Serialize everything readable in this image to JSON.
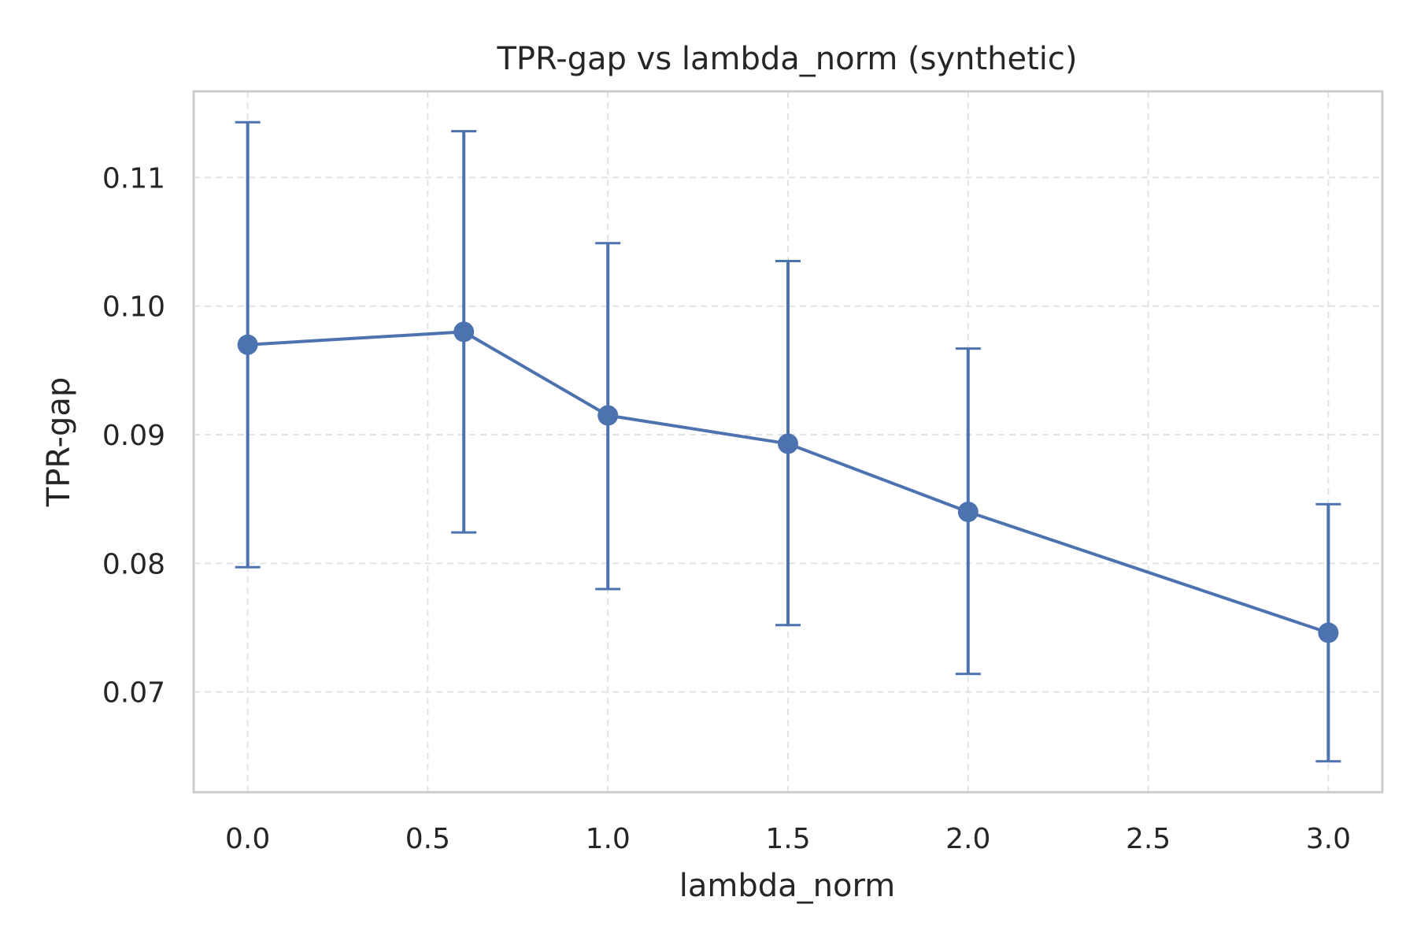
{
  "chart_data": {
    "type": "line",
    "title": "TPR-gap vs lambda_norm (synthetic)",
    "xlabel": "lambda_norm",
    "ylabel": "TPR-gap",
    "xlim": [
      -0.15,
      3.15
    ],
    "ylim": [
      0.0622,
      0.1167
    ],
    "x_ticks": [
      0.0,
      0.5,
      1.0,
      1.5,
      2.0,
      2.5,
      3.0
    ],
    "x_tick_labels": [
      "0.0",
      "0.5",
      "1.0",
      "1.5",
      "2.0",
      "2.5",
      "3.0"
    ],
    "y_ticks": [
      0.07,
      0.08,
      0.09,
      0.1,
      0.11
    ],
    "y_tick_labels": [
      "0.07",
      "0.08",
      "0.09",
      "0.10",
      "0.11"
    ],
    "grid": true,
    "grid_style": "dashed",
    "legend": false,
    "series": [
      {
        "color": "#4c72b0",
        "marker": "circle",
        "points": [
          {
            "x": 0.0,
            "y": 0.097,
            "err_low": 0.0797,
            "err_high": 0.1143
          },
          {
            "x": 0.6,
            "y": 0.098,
            "err_low": 0.0824,
            "err_high": 0.1136
          },
          {
            "x": 1.0,
            "y": 0.0915,
            "err_low": 0.078,
            "err_high": 0.1049
          },
          {
            "x": 1.5,
            "y": 0.0893,
            "err_low": 0.0752,
            "err_high": 0.1035
          },
          {
            "x": 2.0,
            "y": 0.084,
            "err_low": 0.0714,
            "err_high": 0.0967
          },
          {
            "x": 3.0,
            "y": 0.0746,
            "err_low": 0.0646,
            "err_high": 0.0846
          }
        ]
      }
    ]
  },
  "colors": {
    "series": "#4c72b0",
    "grid": "#e3e3e3",
    "frame": "#cccccc",
    "text": "#262626",
    "background": "#ffffff"
  }
}
